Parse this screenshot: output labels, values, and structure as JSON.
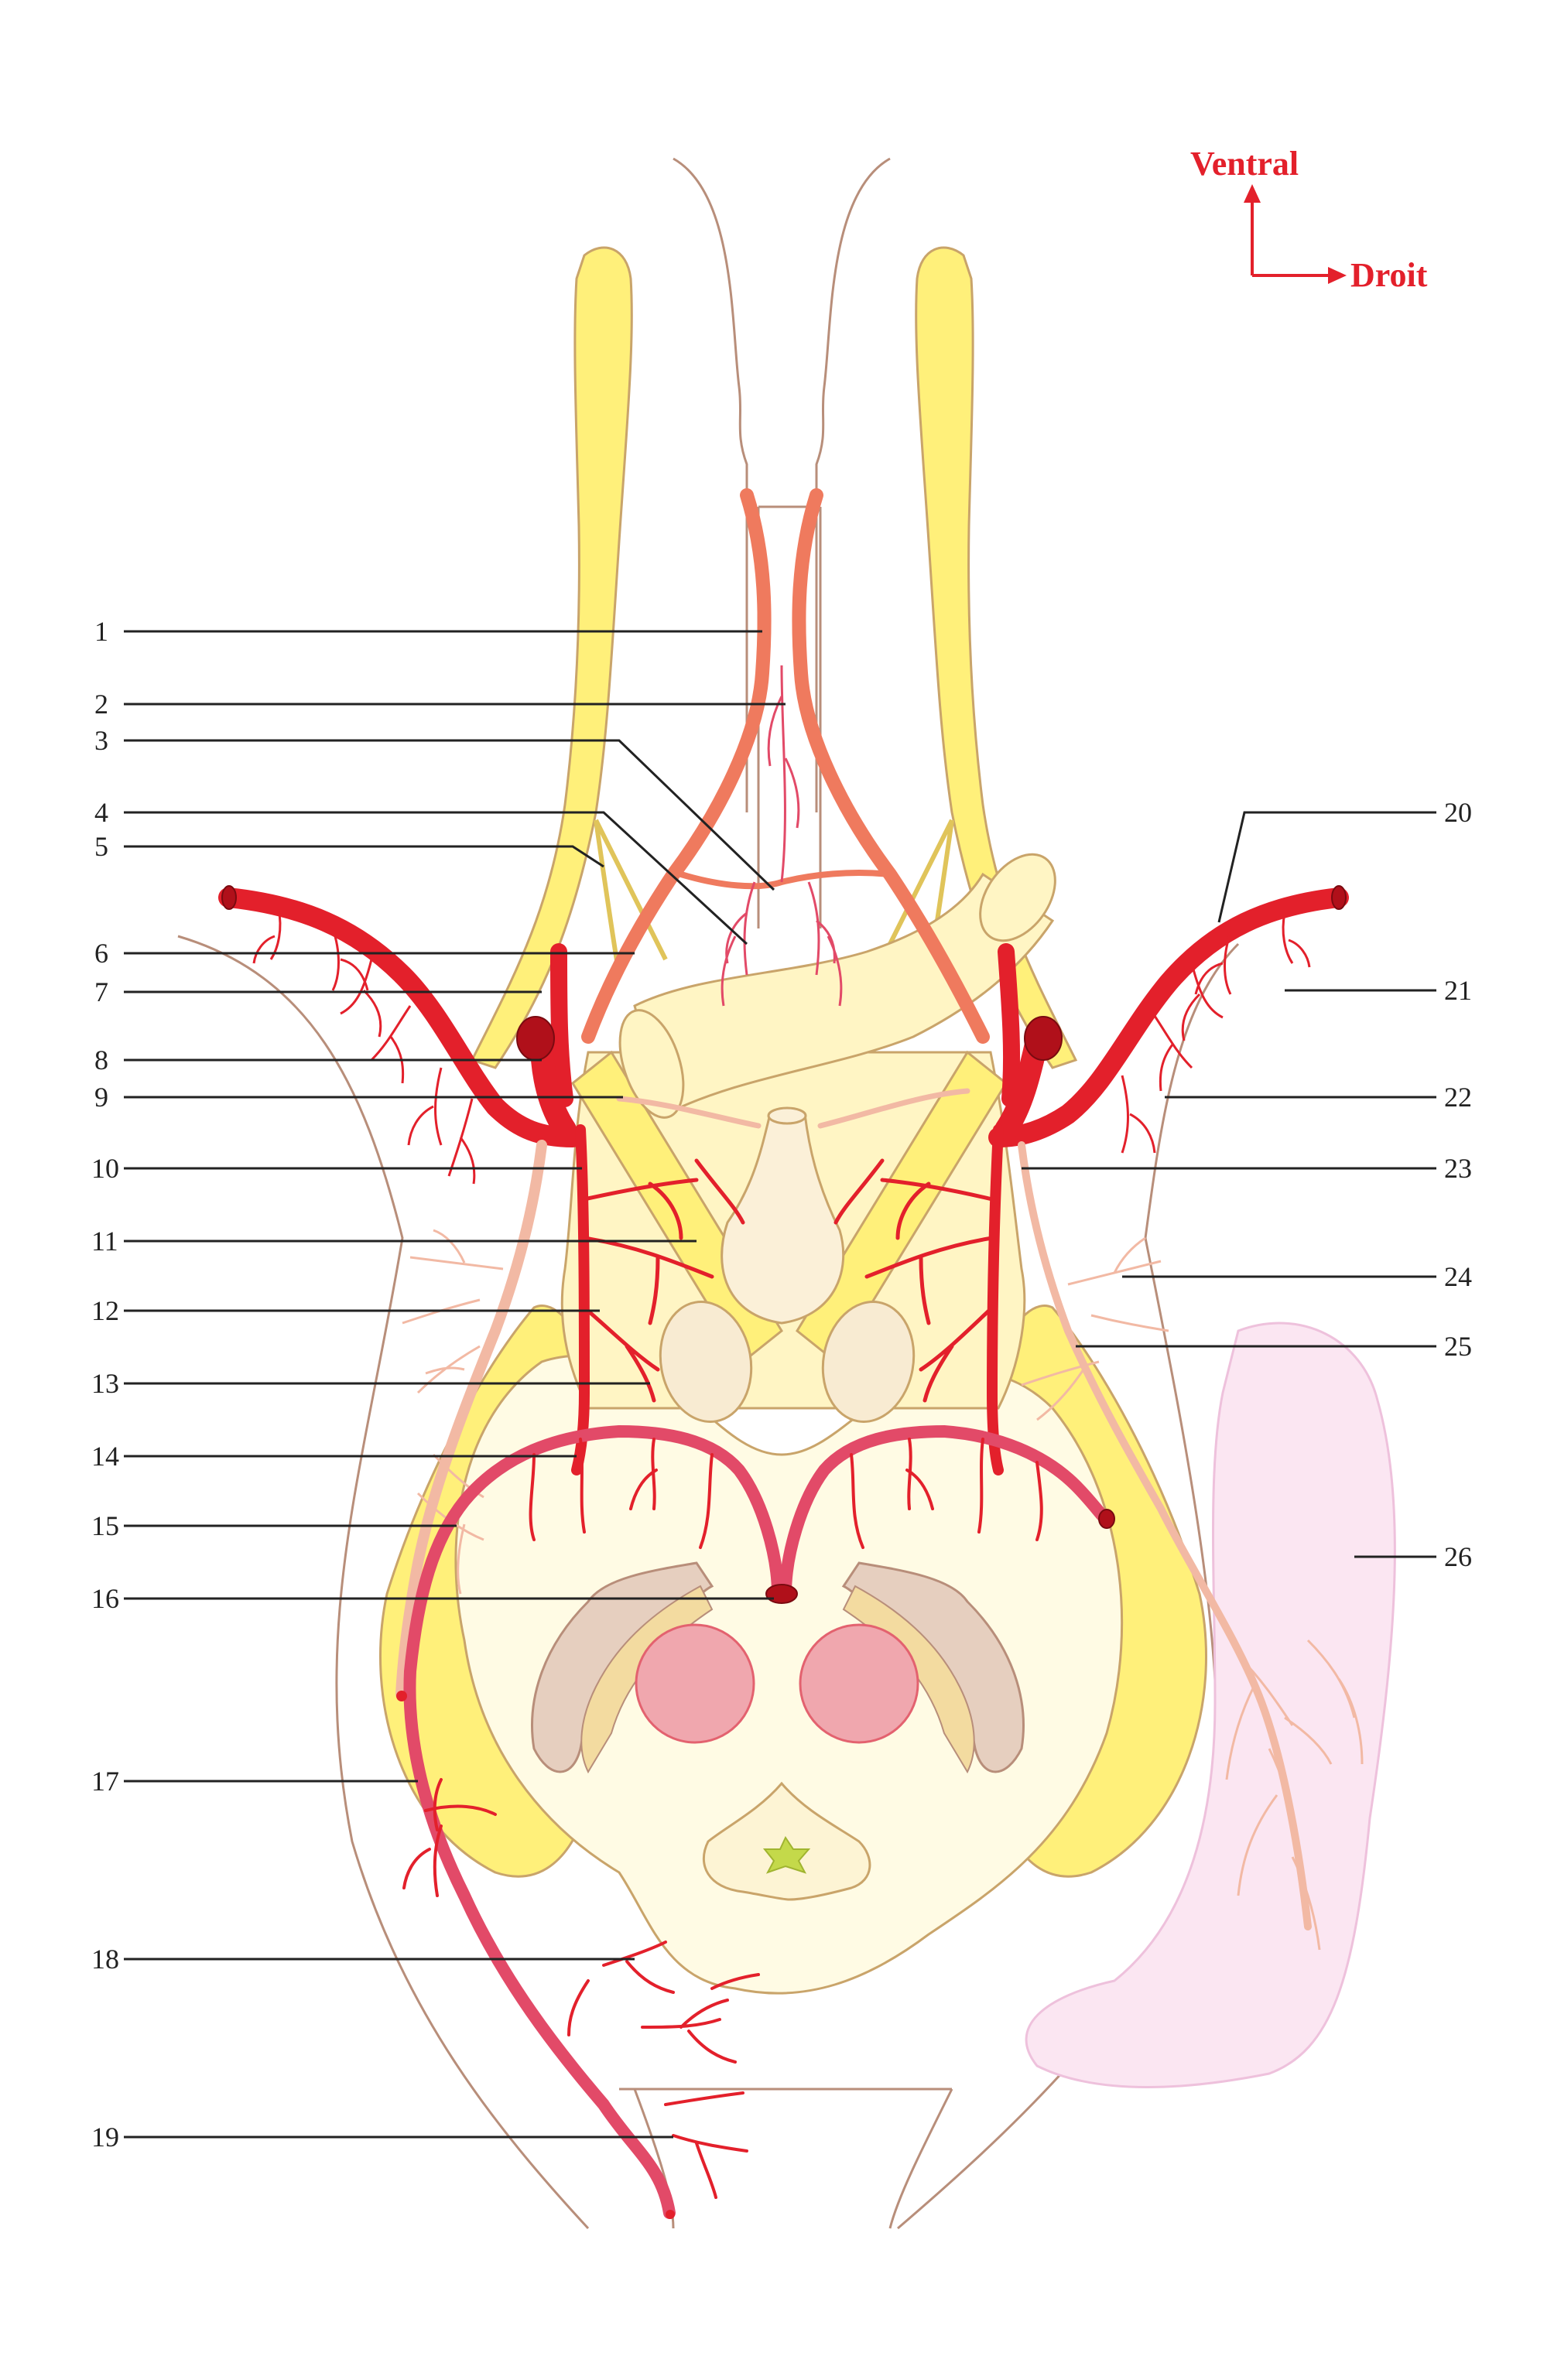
{
  "orientation": {
    "ventral": "Ventral",
    "right": "Droit"
  },
  "labels": {
    "l1": "1",
    "l2": "2",
    "l3": "3",
    "l4": "4",
    "l5": "5",
    "l6": "6",
    "l7": "7",
    "l8": "8",
    "l9": "9",
    "l10": "10",
    "l11": "11",
    "l12": "12",
    "l13": "13",
    "l14": "14",
    "l15": "15",
    "l16": "16",
    "l17": "17",
    "l18": "18",
    "l19": "19",
    "l20": "20",
    "l21": "21",
    "l22": "22",
    "l23": "23",
    "l24": "24",
    "l25": "25",
    "l26": "26"
  },
  "colors": {
    "artery": "#e3202b",
    "artery_dark": "#b0101a",
    "artery_pink": "#e24a68",
    "artery_salmon": "#ef7a5e",
    "nerve": "#fff07a",
    "brain_fill": "#fff5c4",
    "brain_light": "#fffbe4",
    "outline": "#b88e7a",
    "pale_vessel": "#f2b9a4",
    "pink_structure": "#fbe6f2",
    "ventricle": "#f0a7ae"
  }
}
